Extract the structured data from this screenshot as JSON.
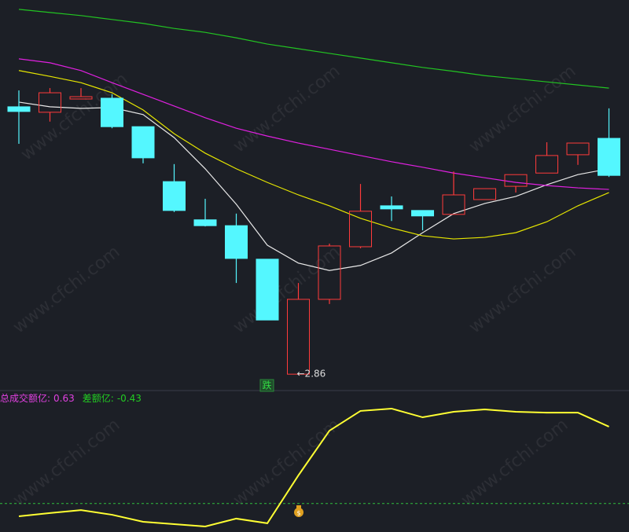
{
  "chart_data": [
    {
      "type": "candlestick",
      "ylim": [
        2.82,
        3.82
      ],
      "open": [
        3.546,
        3.532,
        3.566,
        3.568,
        3.495,
        3.354,
        3.256,
        3.241,
        3.155,
        2.86,
        3.052,
        3.187,
        3.292,
        3.28,
        3.27,
        3.308,
        3.342,
        3.376,
        3.423,
        3.465
      ],
      "high": [
        3.588,
        3.594,
        3.594,
        3.578,
        3.495,
        3.399,
        3.31,
        3.272,
        3.155,
        3.094,
        3.195,
        3.348,
        3.316,
        3.28,
        3.38,
        3.336,
        3.372,
        3.455,
        3.453,
        3.542
      ],
      "low": [
        3.451,
        3.508,
        3.566,
        3.491,
        3.401,
        3.276,
        3.239,
        3.094,
        2.999,
        2.86,
        3.04,
        3.183,
        3.253,
        3.229,
        3.27,
        3.308,
        3.326,
        3.376,
        3.397,
        3.366
      ],
      "close": [
        3.534,
        3.582,
        3.572,
        3.495,
        3.415,
        3.28,
        3.241,
        3.157,
        2.999,
        3.052,
        3.189,
        3.278,
        3.284,
        3.266,
        3.32,
        3.336,
        3.372,
        3.421,
        3.453,
        3.37
      ],
      "up_color": "#ff3b3b",
      "down_color": "#54f7ff",
      "series": [
        {
          "color": "#e8e8e8",
          "values": [
            3.558,
            3.546,
            3.542,
            3.544,
            3.526,
            3.467,
            3.387,
            3.296,
            3.191,
            3.145,
            3.126,
            3.139,
            3.171,
            3.223,
            3.272,
            3.298,
            3.316,
            3.346,
            3.372,
            3.387
          ]
        },
        {
          "color": "#e6e600",
          "values": [
            3.639,
            3.624,
            3.608,
            3.582,
            3.538,
            3.477,
            3.427,
            3.387,
            3.352,
            3.32,
            3.292,
            3.26,
            3.235,
            3.215,
            3.207,
            3.211,
            3.223,
            3.251,
            3.292,
            3.326
          ]
        },
        {
          "color": "#e020e0",
          "values": [
            3.669,
            3.659,
            3.639,
            3.608,
            3.578,
            3.548,
            3.518,
            3.491,
            3.471,
            3.453,
            3.437,
            3.421,
            3.405,
            3.391,
            3.376,
            3.364,
            3.352,
            3.344,
            3.338,
            3.334
          ]
        },
        {
          "color": "#22c422",
          "values": [
            3.796,
            3.788,
            3.78,
            3.77,
            3.76,
            3.747,
            3.737,
            3.723,
            3.707,
            3.695,
            3.683,
            3.671,
            3.659,
            3.647,
            3.637,
            3.626,
            3.618,
            3.61,
            3.602,
            3.594
          ]
        }
      ],
      "low_label": "←2.86",
      "signal": "跌",
      "watermark": "www.cfchi.com"
    },
    {
      "type": "line",
      "ylim": [
        0,
        0.84
      ],
      "color": "#ffff33",
      "reference_line": 0.17,
      "values": [
        0.094,
        0.113,
        0.131,
        0.103,
        0.061,
        0.047,
        0.033,
        0.08,
        0.052,
        0.338,
        0.605,
        0.723,
        0.737,
        0.685,
        0.718,
        0.732,
        0.718,
        0.713,
        0.713,
        0.629
      ],
      "legend": [
        {
          "name": "总成交额亿:",
          "value": 0.63,
          "color": "#e040e0"
        },
        {
          "name": "差额亿:",
          "value": -0.43,
          "color": "#22cc22"
        }
      ]
    }
  ]
}
